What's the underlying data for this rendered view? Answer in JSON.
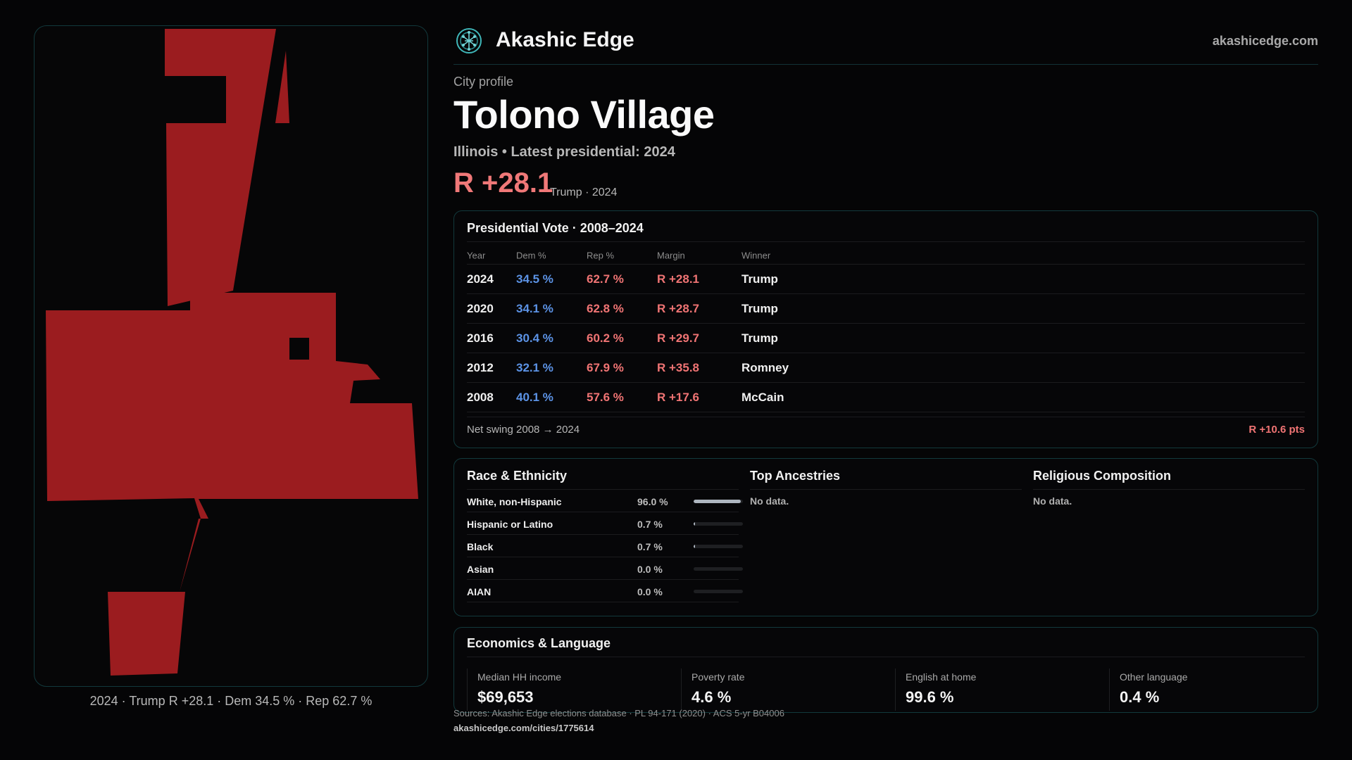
{
  "header": {
    "brand": "Akashic Edge",
    "site": "akashicedge.com",
    "logo_icon": "tree-of-life-icon"
  },
  "profile": {
    "kicker": "City profile",
    "title": "Tolono Village",
    "subtitle": "Illinois • Latest presidential: 2024",
    "headline_margin": "R +28.1",
    "headline_sub": "Trump · 2024"
  },
  "map": {
    "caption": "2024 · Trump R +28.1 · Dem 34.5 % · Rep 62.7 %",
    "fill_color": "#9b1c1f"
  },
  "vote": {
    "title": "Presidential Vote · 2008–2024",
    "columns": {
      "year": "Year",
      "dem": "Dem %",
      "rep": "Rep %",
      "margin": "Margin",
      "winner": "Winner"
    },
    "rows": [
      {
        "year": "2024",
        "dem": "34.5 %",
        "rep": "62.7 %",
        "margin": "R +28.1",
        "winner": "Trump"
      },
      {
        "year": "2020",
        "dem": "34.1 %",
        "rep": "62.8 %",
        "margin": "R +28.7",
        "winner": "Trump"
      },
      {
        "year": "2016",
        "dem": "30.4 %",
        "rep": "60.2 %",
        "margin": "R +29.7",
        "winner": "Trump"
      },
      {
        "year": "2012",
        "dem": "32.1 %",
        "rep": "67.9 %",
        "margin": "R +35.8",
        "winner": "Romney"
      },
      {
        "year": "2008",
        "dem": "40.1 %",
        "rep": "57.6 %",
        "margin": "R +17.6",
        "winner": "McCain"
      }
    ],
    "swing_label": "Net swing 2008 → 2024",
    "swing_value": "R +10.6 pts"
  },
  "race": {
    "title": "Race & Ethnicity",
    "rows": [
      {
        "name": "White, non-Hispanic",
        "pct": "96.0 %",
        "value": 96.0
      },
      {
        "name": "Hispanic or Latino",
        "pct": "0.7 %",
        "value": 0.7
      },
      {
        "name": "Black",
        "pct": "0.7 %",
        "value": 0.7
      },
      {
        "name": "Asian",
        "pct": "0.0 %",
        "value": 0.0
      },
      {
        "name": "AIAN",
        "pct": "0.0 %",
        "value": 0.0
      }
    ]
  },
  "ancestries": {
    "title": "Top Ancestries",
    "empty": "No data."
  },
  "religion": {
    "title": "Religious Composition",
    "empty": "No data."
  },
  "economics": {
    "title": "Economics & Language",
    "metrics": [
      {
        "label": "Median HH income",
        "value": "$69,653"
      },
      {
        "label": "Poverty rate",
        "value": "4.6 %"
      },
      {
        "label": "English at home",
        "value": "99.6 %"
      },
      {
        "label": "Other language",
        "value": "0.4 %"
      }
    ]
  },
  "footer": {
    "sources": "Sources: Akashic Edge elections database · PL 94-171 (2020) · ACS 5-yr B04006",
    "url": "akashicedge.com/cities/1775614"
  }
}
